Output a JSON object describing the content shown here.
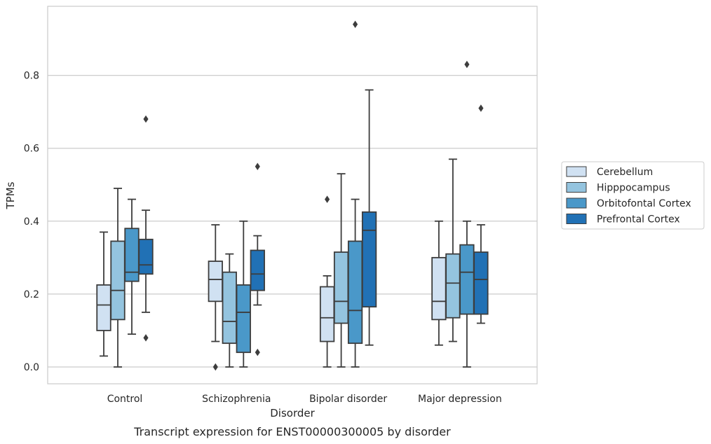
{
  "caption": "Transcript expression for ENST00000300005 by disorder",
  "chart_data": {
    "type": "boxplot",
    "xlabel": "Disorder",
    "ylabel": "TPMs",
    "ylim": [
      -0.045,
      0.99
    ],
    "yticks": [
      "0.0",
      "0.2",
      "0.4",
      "0.6",
      "0.8"
    ],
    "grid": true,
    "legend_position": "right",
    "categories": [
      "Control",
      "Schizophrenia",
      "Bipolar disorder",
      "Major depression"
    ],
    "series": [
      {
        "name": "Cerebellum",
        "color": "#d0e1f2",
        "boxes": [
          {
            "whislo": 0.03,
            "q1": 0.1,
            "med": 0.17,
            "q3": 0.225,
            "whishi": 0.37,
            "fliers": []
          },
          {
            "whislo": 0.07,
            "q1": 0.18,
            "med": 0.24,
            "q3": 0.29,
            "whishi": 0.39,
            "fliers": [
              0.0
            ]
          },
          {
            "whislo": 0.0,
            "q1": 0.07,
            "med": 0.135,
            "q3": 0.22,
            "whishi": 0.25,
            "fliers": [
              0.46
            ]
          },
          {
            "whislo": 0.06,
            "q1": 0.13,
            "med": 0.18,
            "q3": 0.3,
            "whishi": 0.4,
            "fliers": []
          }
        ]
      },
      {
        "name": "Hipppocampus",
        "color": "#94c4df",
        "boxes": [
          {
            "whislo": 0.0,
            "q1": 0.13,
            "med": 0.21,
            "q3": 0.345,
            "whishi": 0.49,
            "fliers": []
          },
          {
            "whislo": 0.0,
            "q1": 0.065,
            "med": 0.125,
            "q3": 0.26,
            "whishi": 0.31,
            "fliers": []
          },
          {
            "whislo": 0.0,
            "q1": 0.12,
            "med": 0.18,
            "q3": 0.315,
            "whishi": 0.53,
            "fliers": []
          },
          {
            "whislo": 0.07,
            "q1": 0.135,
            "med": 0.23,
            "q3": 0.31,
            "whishi": 0.57,
            "fliers": []
          }
        ]
      },
      {
        "name": "Orbitofontal Cortex",
        "color": "#4a98c9",
        "boxes": [
          {
            "whislo": 0.09,
            "q1": 0.235,
            "med": 0.26,
            "q3": 0.38,
            "whishi": 0.46,
            "fliers": []
          },
          {
            "whislo": 0.0,
            "q1": 0.04,
            "med": 0.15,
            "q3": 0.225,
            "whishi": 0.4,
            "fliers": []
          },
          {
            "whislo": 0.0,
            "q1": 0.065,
            "med": 0.155,
            "q3": 0.345,
            "whishi": 0.46,
            "fliers": [
              0.94
            ]
          },
          {
            "whislo": 0.0,
            "q1": 0.145,
            "med": 0.26,
            "q3": 0.335,
            "whishi": 0.4,
            "fliers": [
              0.83
            ]
          }
        ]
      },
      {
        "name": "Prefrontal Cortex",
        "color": "#2171b5",
        "boxes": [
          {
            "whislo": 0.15,
            "q1": 0.255,
            "med": 0.28,
            "q3": 0.35,
            "whishi": 0.43,
            "fliers": [
              0.68,
              0.08
            ]
          },
          {
            "whislo": 0.17,
            "q1": 0.21,
            "med": 0.255,
            "q3": 0.32,
            "whishi": 0.36,
            "fliers": [
              0.55,
              0.04
            ]
          },
          {
            "whislo": 0.06,
            "q1": 0.165,
            "med": 0.375,
            "q3": 0.425,
            "whishi": 0.76,
            "fliers": []
          },
          {
            "whislo": 0.12,
            "q1": 0.145,
            "med": 0.24,
            "q3": 0.315,
            "whishi": 0.39,
            "fliers": [
              0.71
            ]
          }
        ]
      }
    ]
  }
}
